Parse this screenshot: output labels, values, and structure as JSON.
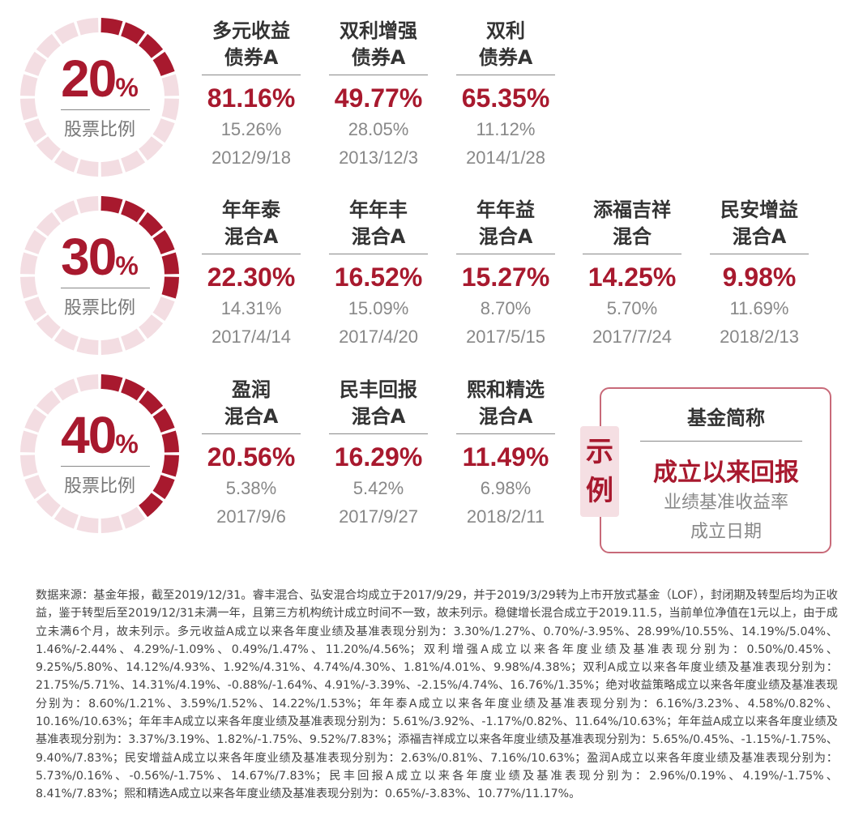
{
  "accent_color": "#a8192e",
  "ring_light_color": "#f3dde2",
  "groups": [
    {
      "pct": "20",
      "pct_symbol": "%",
      "label": "股票比例",
      "fill_fraction": 0.2,
      "funds": [
        {
          "name1": "多元收益",
          "name2": "债券A",
          "return": "81.16%",
          "benchmark": "15.26%",
          "date": "2012/9/18"
        },
        {
          "name1": "双利增强",
          "name2": "债券A",
          "return": "49.77%",
          "benchmark": "28.05%",
          "date": "2013/12/3"
        },
        {
          "name1": "双利",
          "name2": "债券A",
          "return": "65.35%",
          "benchmark": "11.12%",
          "date": "2014/1/28"
        }
      ]
    },
    {
      "pct": "30",
      "pct_symbol": "%",
      "label": "股票比例",
      "fill_fraction": 0.3,
      "funds": [
        {
          "name1": "年年泰",
          "name2": "混合A",
          "return": "22.30%",
          "benchmark": "14.31%",
          "date": "2017/4/14"
        },
        {
          "name1": "年年丰",
          "name2": "混合A",
          "return": "16.52%",
          "benchmark": "15.09%",
          "date": "2017/4/20"
        },
        {
          "name1": "年年益",
          "name2": "混合A",
          "return": "15.27%",
          "benchmark": "8.70%",
          "date": "2017/5/15"
        },
        {
          "name1": "添福吉祥",
          "name2": "混合",
          "return": "14.25%",
          "benchmark": "5.70%",
          "date": "2017/7/24"
        },
        {
          "name1": "民安增益",
          "name2": "混合A",
          "return": "9.98%",
          "benchmark": "11.69%",
          "date": "2018/2/13"
        }
      ]
    },
    {
      "pct": "40",
      "pct_symbol": "%",
      "label": "股票比例",
      "fill_fraction": 0.4,
      "funds": [
        {
          "name1": "盈润",
          "name2": "混合A",
          "return": "20.56%",
          "benchmark": "5.38%",
          "date": "2017/9/6"
        },
        {
          "name1": "民丰回报",
          "name2": "混合A",
          "return": "16.29%",
          "benchmark": "5.42%",
          "date": "2017/9/27"
        },
        {
          "name1": "熙和精选",
          "name2": "混合A",
          "return": "11.49%",
          "benchmark": "6.98%",
          "date": "2018/2/11"
        }
      ]
    }
  ],
  "legend": {
    "tag": "示例",
    "title": "基金简称",
    "return": "成立以来回报",
    "benchmark": "业绩基准收益率",
    "date": "成立日期"
  },
  "footnote": "数据来源：基金年报，截至2019/12/31。睿丰混合、弘安混合均成立于2017/9/29，并于2019/3/29转为上市开放式基金（LOF），封闭期及转型后均为正收益，鉴于转型后至2019/12/31未满一年，且第三方机构统计成立时间不一致，故未列示。稳健增长混合成立于2019.11.5，当前单位净值在1元以上，由于成立未满6个月，故未列示。多元收益A成立以来各年度业绩及基准表现分别为：3.30%/1.27%、0.70%/-3.95%、28.99%/10.55%、14.19%/5.04%、1.46%/-2.44%、4.29%/-1.09%、0.49%/1.47%、11.20%/4.56%；双利增强A成立以来各年度业绩及基准表现分别为：0.50%/0.45%、9.25%/5.80%、14.12%/4.93%、1.92%/4.31%、4.74%/4.30%、1.81%/4.01%、9.98%/4.38%；双利A成立以来各年度业绩及基准表现分别为：21.75%/5.71%、14.31%/4.19%、-0.88%/-1.64%、4.91%/-3.39%、-2.15%/4.74%、16.76%/1.35%；绝对收益策略成立以来各年度业绩及基准表现分别为：8.60%/1.21%、3.59%/1.52%、14.22%/1.53%；年年泰A成立以来各年度业绩及基准表现分别为：6.16%/3.23%、4.58%/0.82%、10.16%/10.63%；年年丰A成立以来各年度业绩及基准表现分别为：5.61%/3.92%、-1.17%/0.82%、11.64%/10.63%；年年益A成立以来各年度业绩及基准表现分别为：3.37%/3.19%、1.82%/-1.75%、9.52%/7.83%；添福吉祥成立以来各年度业绩及基准表现分别为：5.65%/0.45%、-1.15%/-1.75%、9.40%/7.83%；民安增益A成立以来各年度业绩及基准表现分别为：2.63%/0.81%、7.16%/10.63%；盈润A成立以来各年度业绩及基准表现分别为：5.73%/0.16%、-0.56%/-1.75%、14.67%/7.83%；民丰回报A成立以来各年度业绩及基准表现分别为：2.96%/0.19%、4.19%/-1.75%、8.41%/7.83%；熙和精选A成立以来各年度业绩及基准表现分别为：0.65%/-3.83%、10.77%/11.17%。"
}
